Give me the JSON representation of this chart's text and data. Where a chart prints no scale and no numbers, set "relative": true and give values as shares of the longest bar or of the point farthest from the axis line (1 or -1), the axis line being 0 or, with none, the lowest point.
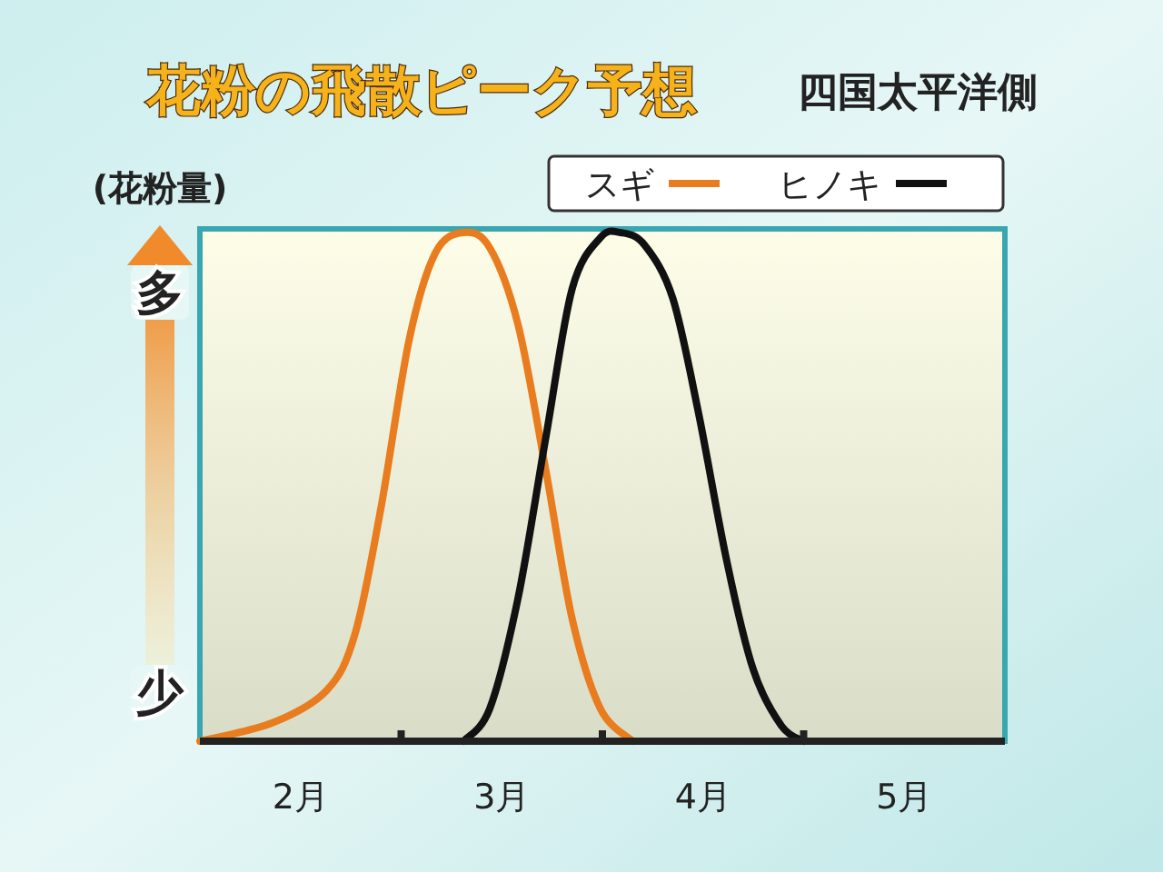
{
  "chart_data": {
    "type": "line",
    "title": "花粉の飛散ピーク予想",
    "subtitle": "四国太平洋側",
    "ylabel": "(花粉量)",
    "annotations": [
      "多",
      "少"
    ],
    "relative": true,
    "xlim": [
      2,
      6
    ],
    "xticks": [
      {
        "value": 2.5,
        "label": "2月"
      },
      {
        "value": 3,
        "label": null
      },
      {
        "value": 3.5,
        "label": "3月"
      },
      {
        "value": 4,
        "label": null
      },
      {
        "value": 4.5,
        "label": "4月"
      },
      {
        "value": 5,
        "label": null
      },
      {
        "value": 5.5,
        "label": "5月"
      }
    ],
    "legend": "top right",
    "series": [
      {
        "name": "スギ",
        "color": "#e87c1e",
        "x": [
          2.0,
          2.36,
          2.63,
          2.77,
          2.9,
          3.04,
          3.17,
          3.31,
          3.44,
          3.58,
          3.72,
          3.85,
          3.99,
          4.15
        ],
        "values": [
          0,
          0.036,
          0.1,
          0.21,
          0.46,
          0.79,
          0.96,
          1,
          0.97,
          0.82,
          0.53,
          0.24,
          0.064,
          0
        ]
      },
      {
        "name": "ヒノキ",
        "color": "#111111",
        "x": [
          3.31,
          3.44,
          3.58,
          3.72,
          3.85,
          3.99,
          4.09,
          4.21,
          4.35,
          4.48,
          4.62,
          4.75,
          4.89,
          5.0
        ],
        "values": [
          0,
          0.064,
          0.28,
          0.6,
          0.89,
          0.99,
          1,
          0.975,
          0.87,
          0.64,
          0.35,
          0.14,
          0.03,
          0
        ]
      }
    ]
  }
}
